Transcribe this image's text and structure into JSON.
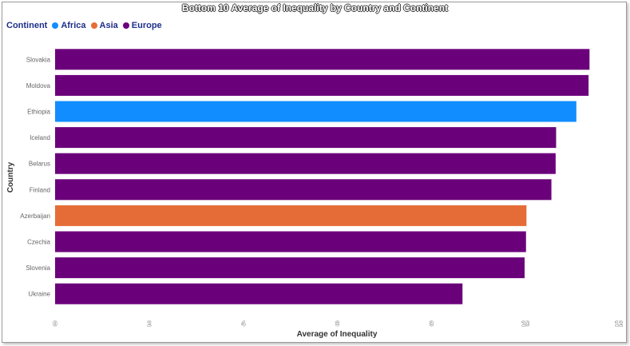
{
  "chart_data": {
    "type": "bar",
    "orientation": "horizontal",
    "title": "Bottom 10 Average of Inequality by Country and Continent",
    "xlabel": "Average of Inequality",
    "ylabel": "Country",
    "xlim": [
      0,
      12
    ],
    "x_ticks": [
      "0",
      "2",
      "4",
      "6",
      "8",
      "10",
      "12"
    ],
    "legend": {
      "title": "Continent",
      "position": "top-left",
      "entries": [
        {
          "name": "Africa",
          "color": "#118DFF"
        },
        {
          "name": "Asia",
          "color": "#E66C37"
        },
        {
          "name": "Europe",
          "color": "#6B007B"
        }
      ]
    },
    "categories": [
      "Slovakia",
      "Moldova",
      "Ethiopia",
      "Iceland",
      "Belarus",
      "Finland",
      "Azerbaijan",
      "Czechia",
      "Slovenia",
      "Ukraine"
    ],
    "values": [
      11.36,
      11.34,
      11.08,
      10.65,
      10.64,
      10.55,
      10.02,
      10.01,
      9.98,
      8.66
    ],
    "continents": [
      "Europe",
      "Europe",
      "Africa",
      "Europe",
      "Europe",
      "Europe",
      "Asia",
      "Europe",
      "Europe",
      "Europe"
    ],
    "grid": false
  }
}
